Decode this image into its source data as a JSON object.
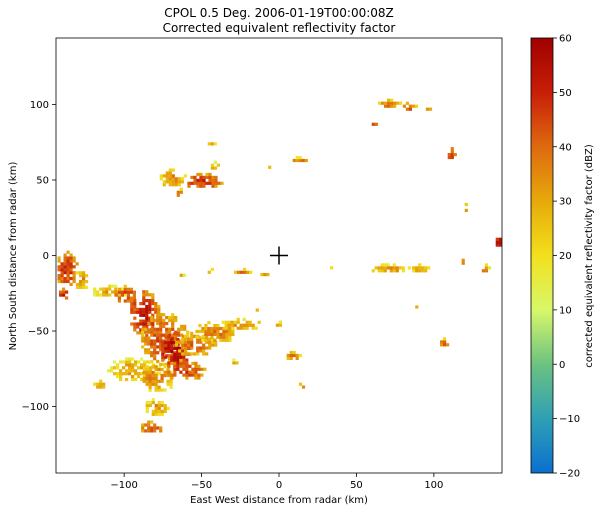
{
  "chart_data": {
    "type": "heatmap",
    "title": "CPOL 0.5 Deg. 2006-01-19T00:00:08Z",
    "subtitle": "Corrected equivalent reflectivity factor",
    "xlabel": "East West distance from radar (km)",
    "ylabel": "North South distance from radar (km)",
    "xlim": [
      -144,
      144
    ],
    "ylim": [
      -144,
      144
    ],
    "xticks": [
      -100,
      -50,
      0,
      50,
      100
    ],
    "yticks": [
      -100,
      -50,
      0,
      50,
      100
    ],
    "grid": false,
    "radar_marker": [
      0,
      0
    ],
    "colorbar": {
      "label": "corrected equivalent reflectivity factor (dBZ)",
      "min": -20,
      "max": 60,
      "ticks": [
        -20,
        -10,
        0,
        10,
        20,
        30,
        40,
        50,
        60
      ],
      "colormap_stops": [
        {
          "v": -20,
          "color": "#0b6fd0"
        },
        {
          "v": -10,
          "color": "#2fa0b4"
        },
        {
          "v": 0,
          "color": "#6cc280"
        },
        {
          "v": 10,
          "color": "#d8f86a"
        },
        {
          "v": 20,
          "color": "#f2e01c"
        },
        {
          "v": 30,
          "color": "#e6a90a"
        },
        {
          "v": 40,
          "color": "#de6a10"
        },
        {
          "v": 50,
          "color": "#c81e08"
        },
        {
          "v": 60,
          "color": "#a00000"
        }
      ]
    },
    "echo_cells": [
      {
        "x": -138,
        "y": -8,
        "rx": 7,
        "ry": 12,
        "dbz": 38
      },
      {
        "x": -128,
        "y": -15,
        "rx": 5,
        "ry": 7,
        "dbz": 24
      },
      {
        "x": -140,
        "y": -25,
        "rx": 4,
        "ry": 4,
        "dbz": 40
      },
      {
        "x": -110,
        "y": -23,
        "rx": 12,
        "ry": 4,
        "dbz": 22
      },
      {
        "x": -100,
        "y": -25,
        "rx": 8,
        "ry": 6,
        "dbz": 36
      },
      {
        "x": -88,
        "y": -38,
        "rx": 10,
        "ry": 16,
        "dbz": 42
      },
      {
        "x": -75,
        "y": -55,
        "rx": 16,
        "ry": 18,
        "dbz": 34
      },
      {
        "x": -68,
        "y": -62,
        "rx": 10,
        "ry": 12,
        "dbz": 48
      },
      {
        "x": -55,
        "y": -58,
        "rx": 14,
        "ry": 8,
        "dbz": 30
      },
      {
        "x": -95,
        "y": -75,
        "rx": 18,
        "ry": 8,
        "dbz": 22
      },
      {
        "x": -80,
        "y": -80,
        "rx": 12,
        "ry": 10,
        "dbz": 27
      },
      {
        "x": -62,
        "y": -75,
        "rx": 14,
        "ry": 7,
        "dbz": 36
      },
      {
        "x": -42,
        "y": -50,
        "rx": 14,
        "ry": 7,
        "dbz": 28
      },
      {
        "x": -25,
        "y": -45,
        "rx": 14,
        "ry": 4,
        "dbz": 24
      },
      {
        "x": -80,
        "y": -100,
        "rx": 8,
        "ry": 6,
        "dbz": 24
      },
      {
        "x": -83,
        "y": -113,
        "rx": 8,
        "ry": 4,
        "dbz": 36
      },
      {
        "x": -117,
        "y": -85,
        "rx": 5,
        "ry": 3,
        "dbz": 24
      },
      {
        "x": -30,
        "y": -70,
        "rx": 4,
        "ry": 2,
        "dbz": 22
      },
      {
        "x": 8,
        "y": -66,
        "rx": 5,
        "ry": 3,
        "dbz": 30
      },
      {
        "x": 13,
        "y": -86,
        "rx": 4,
        "ry": 2,
        "dbz": 32
      },
      {
        "x": -70,
        "y": 52,
        "rx": 9,
        "ry": 6,
        "dbz": 26
      },
      {
        "x": -50,
        "y": 50,
        "rx": 13,
        "ry": 5,
        "dbz": 38
      },
      {
        "x": -65,
        "y": 42,
        "rx": 3,
        "ry": 3,
        "dbz": 34
      },
      {
        "x": -45,
        "y": 75,
        "rx": 3,
        "ry": 2,
        "dbz": 22
      },
      {
        "x": -42,
        "y": 60,
        "rx": 4,
        "ry": 3,
        "dbz": 24
      },
      {
        "x": 12,
        "y": 64,
        "rx": 7,
        "ry": 2,
        "dbz": 28
      },
      {
        "x": -7,
        "y": 59,
        "rx": 2,
        "ry": 1.5,
        "dbz": 22
      },
      {
        "x": 70,
        "y": 101,
        "rx": 8,
        "ry": 3,
        "dbz": 28
      },
      {
        "x": 83,
        "y": 99,
        "rx": 5,
        "ry": 3,
        "dbz": 34
      },
      {
        "x": 94,
        "y": 98,
        "rx": 3,
        "ry": 2,
        "dbz": 30
      },
      {
        "x": 60,
        "y": 88,
        "rx": 4,
        "ry": 2,
        "dbz": 30
      },
      {
        "x": 110,
        "y": 68,
        "rx": 3,
        "ry": 4,
        "dbz": 38
      },
      {
        "x": 120,
        "y": 32,
        "rx": 2,
        "ry": 3,
        "dbz": 30
      },
      {
        "x": 141,
        "y": 10,
        "rx": 3,
        "ry": 4,
        "dbz": 44
      },
      {
        "x": 70,
        "y": -8,
        "rx": 14,
        "ry": 3,
        "dbz": 24
      },
      {
        "x": 90,
        "y": -8,
        "rx": 6,
        "ry": 3,
        "dbz": 22
      },
      {
        "x": 118,
        "y": -3,
        "rx": 2,
        "ry": 3,
        "dbz": 22
      },
      {
        "x": 132,
        "y": -8,
        "rx": 3,
        "ry": 3,
        "dbz": 30
      },
      {
        "x": 106,
        "y": -57,
        "rx": 4,
        "ry": 3,
        "dbz": 32
      },
      {
        "x": 88,
        "y": -33,
        "rx": 2,
        "ry": 2,
        "dbz": 22
      },
      {
        "x": -45,
        "y": -10,
        "rx": 3,
        "ry": 2,
        "dbz": 22
      },
      {
        "x": -25,
        "y": -10,
        "rx": 6,
        "ry": 2,
        "dbz": 28
      },
      {
        "x": -65,
        "y": -12,
        "rx": 3,
        "ry": 2,
        "dbz": 22
      },
      {
        "x": -10,
        "y": -12,
        "rx": 4,
        "ry": 1.5,
        "dbz": 22
      },
      {
        "x": 33,
        "y": -8,
        "rx": 2,
        "ry": 1,
        "dbz": 22
      },
      {
        "x": -1,
        "y": -45,
        "rx": 3,
        "ry": 2,
        "dbz": 22
      },
      {
        "x": -15,
        "y": -35,
        "rx": 2,
        "ry": 2,
        "dbz": 20
      }
    ]
  }
}
